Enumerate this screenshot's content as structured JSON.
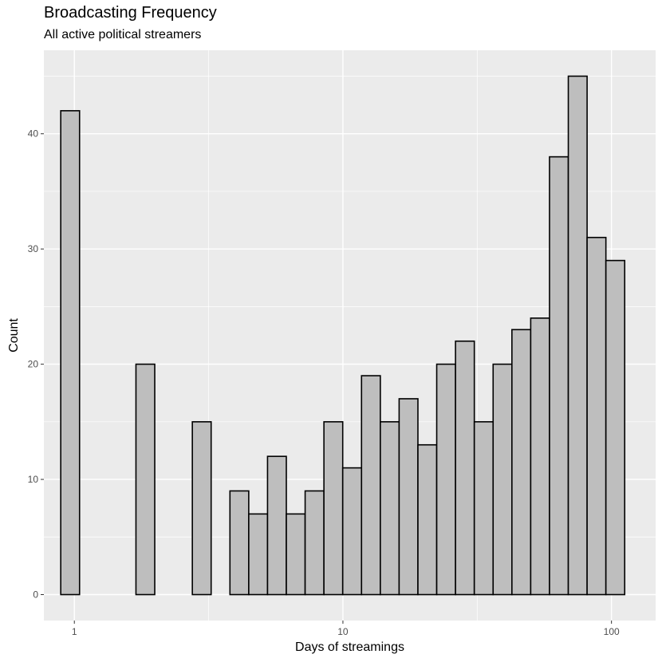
{
  "title": "Broadcasting Frequency",
  "subtitle": "All active political streamers",
  "chart_data": {
    "type": "bar",
    "title": "Broadcasting Frequency",
    "subtitle": "All active political streamers",
    "xlabel": "Days of streamings",
    "ylabel": "Count",
    "x_scale": "log10",
    "xlim": [
      0.77,
      146
    ],
    "ylim": [
      -2.25,
      47.25
    ],
    "x_ticks": [
      1,
      10,
      100
    ],
    "x_tick_labels": [
      "1",
      "10",
      "100"
    ],
    "y_ticks": [
      0,
      10,
      20,
      30,
      40
    ],
    "y_tick_labels": [
      "0",
      "10",
      "20",
      "30",
      "40"
    ],
    "grid": true,
    "bin_count": 30,
    "bin_range": [
      0.89,
      112
    ],
    "values": [
      42,
      0,
      0,
      0,
      20,
      0,
      0,
      15,
      0,
      9,
      7,
      12,
      7,
      9,
      15,
      11,
      19,
      15,
      17,
      13,
      20,
      22,
      15,
      20,
      23,
      24,
      38,
      45,
      31,
      29
    ],
    "colors": {
      "bar_fill": "#bebebe",
      "bar_stroke": "#000000",
      "panel": "#ebebeb",
      "grid": "#ffffff"
    }
  }
}
